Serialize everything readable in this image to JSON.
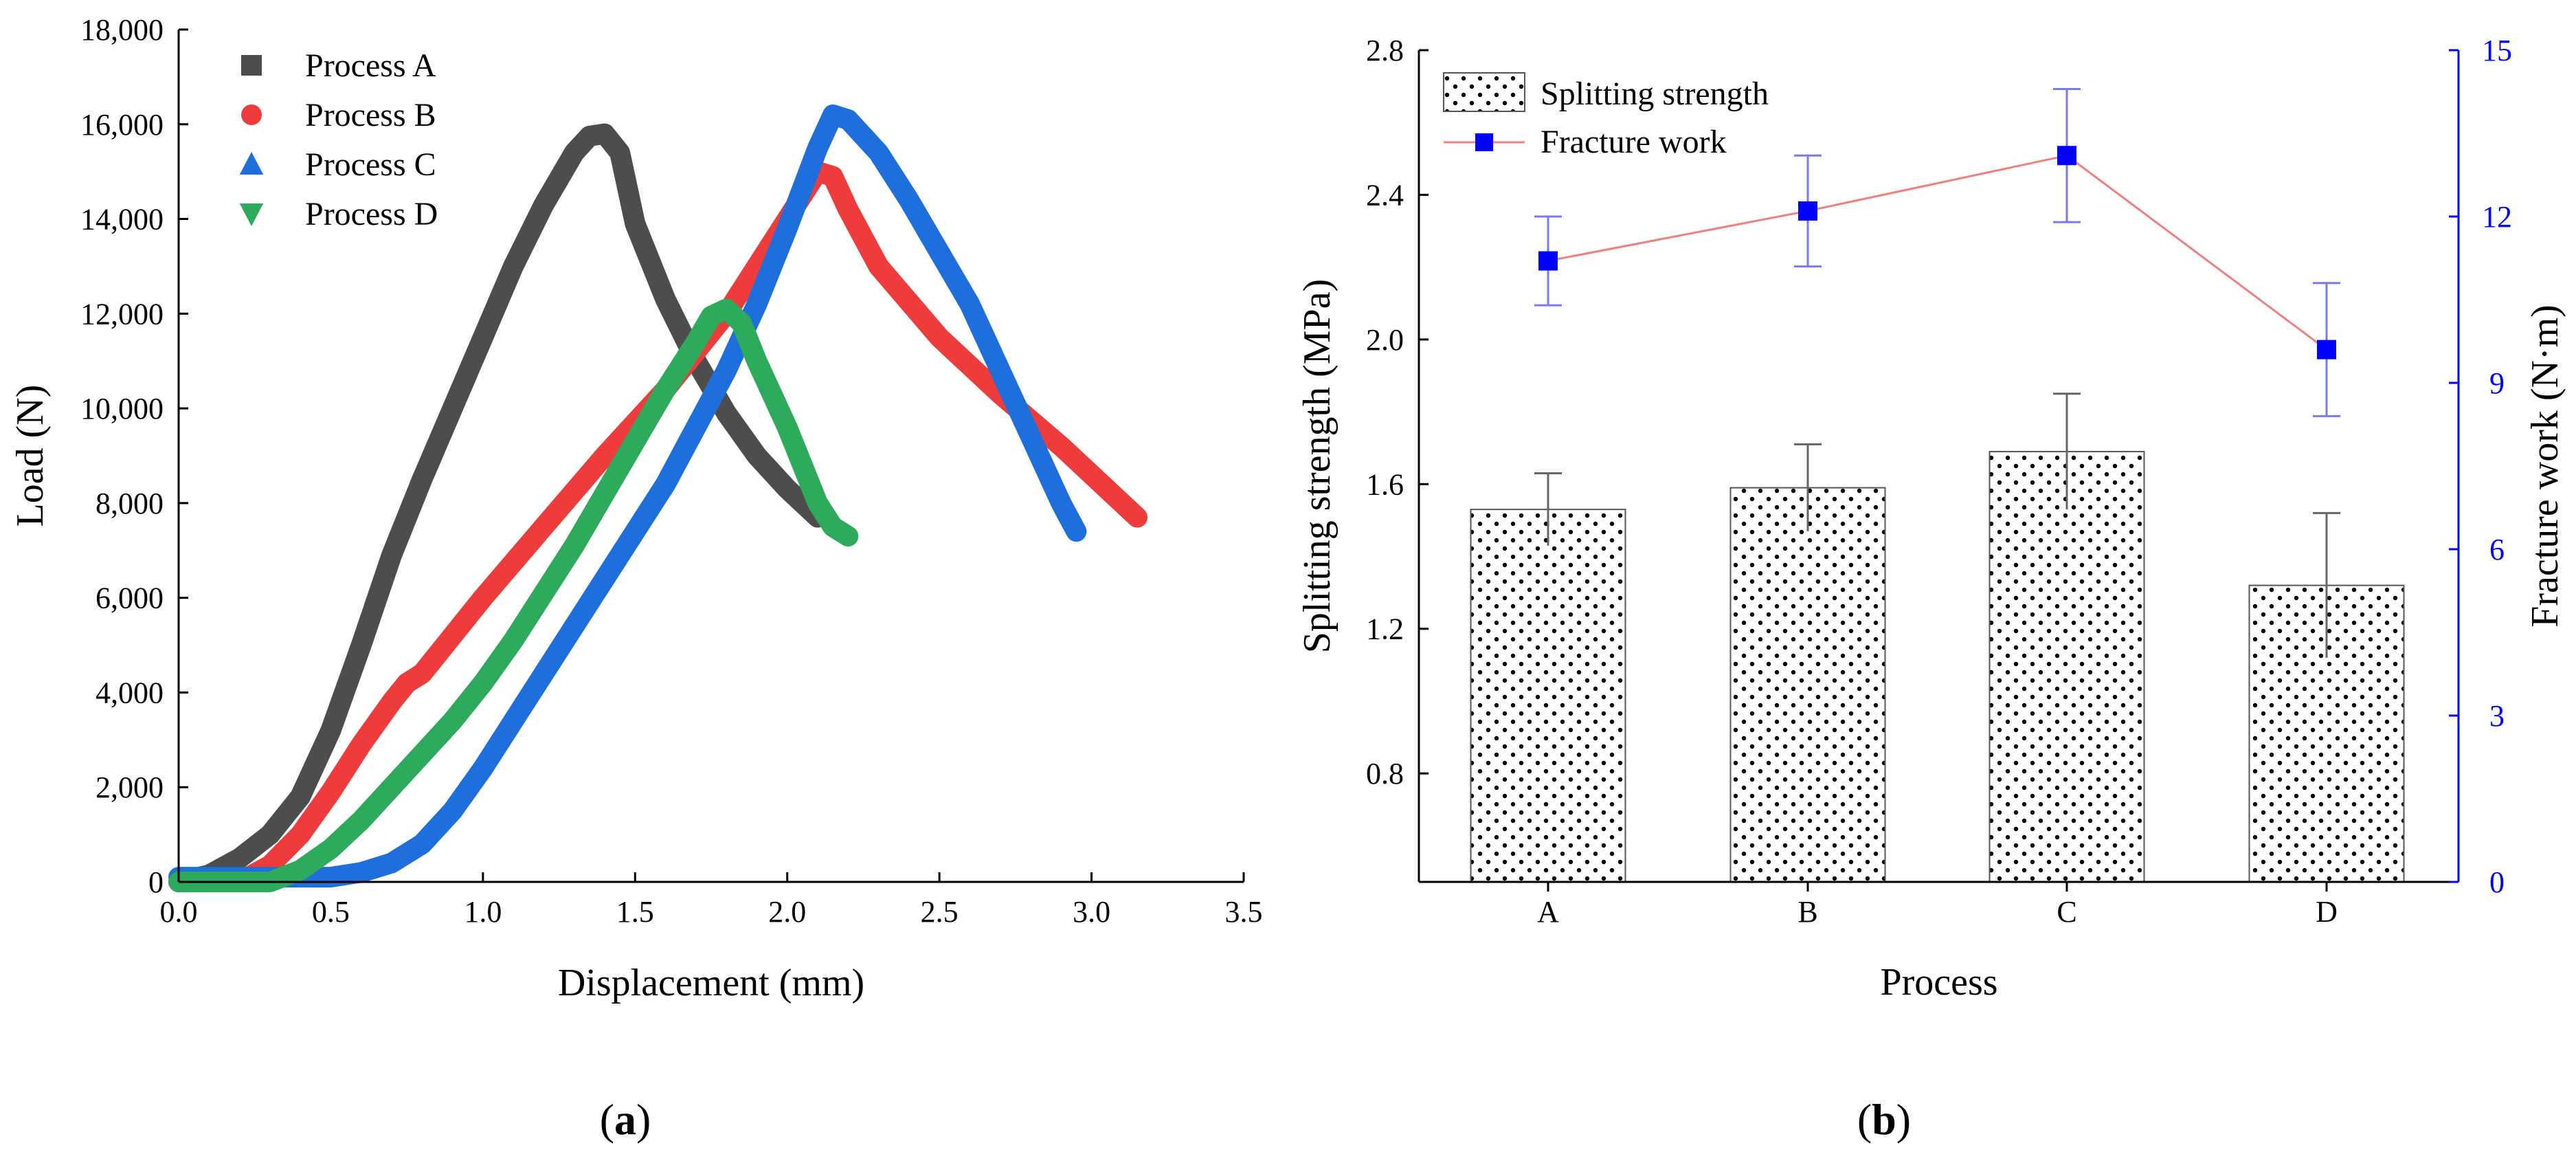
{
  "panels": {
    "a_label": "a",
    "b_label": "b"
  },
  "chart_data": [
    {
      "type": "line",
      "panel": "a",
      "title": "",
      "xlabel": "Displacement (mm)",
      "ylabel": "Load (N)",
      "xlim": [
        0,
        3.5
      ],
      "ylim": [
        0,
        18000
      ],
      "xticks": [
        "0.0",
        "0.5",
        "1.0",
        "1.5",
        "2.0",
        "2.5",
        "3.0",
        "3.5"
      ],
      "yticks": [
        "0",
        "2,000",
        "4,000",
        "6,000",
        "8,000",
        "10,000",
        "12,000",
        "14,000",
        "16,000",
        "18,000"
      ],
      "legend_position": "top-left",
      "series": [
        {
          "name": "Process A",
          "color": "#4d4d4d",
          "marker": "square",
          "x": [
            0.0,
            0.1,
            0.2,
            0.3,
            0.4,
            0.5,
            0.6,
            0.7,
            0.8,
            0.9,
            1.0,
            1.1,
            1.2,
            1.3,
            1.35,
            1.4,
            1.45,
            1.5,
            1.6,
            1.7,
            1.8,
            1.9,
            2.0,
            2.1
          ],
          "y": [
            0,
            150,
            500,
            1000,
            1800,
            3200,
            5000,
            6900,
            8500,
            10000,
            11500,
            13000,
            14300,
            15400,
            15750,
            15800,
            15400,
            13900,
            12300,
            11000,
            9900,
            9000,
            8300,
            7700
          ]
        },
        {
          "name": "Process B",
          "color": "#ee3b3b",
          "marker": "circle",
          "x": [
            0.0,
            0.2,
            0.3,
            0.4,
            0.5,
            0.6,
            0.7,
            0.75,
            0.8,
            0.9,
            1.0,
            1.2,
            1.4,
            1.6,
            1.8,
            2.0,
            2.1,
            2.15,
            2.2,
            2.3,
            2.5,
            2.7,
            2.9,
            3.1,
            3.15
          ],
          "y": [
            0,
            0,
            350,
            1000,
            1900,
            2900,
            3800,
            4200,
            4400,
            5200,
            6000,
            7500,
            9000,
            10400,
            12000,
            14000,
            15000,
            14900,
            14200,
            13000,
            11500,
            10300,
            9200,
            8000,
            7700
          ]
        },
        {
          "name": "Process C",
          "color": "#1e6fdc",
          "marker": "triangle-up",
          "x": [
            0.0,
            0.3,
            0.5,
            0.6,
            0.7,
            0.8,
            0.9,
            1.0,
            1.1,
            1.2,
            1.4,
            1.6,
            1.8,
            1.9,
            2.0,
            2.1,
            2.15,
            2.2,
            2.3,
            2.4,
            2.5,
            2.6,
            2.7,
            2.8,
            2.9,
            2.95
          ],
          "y": [
            100,
            100,
            100,
            200,
            400,
            800,
            1500,
            2400,
            3400,
            4400,
            6400,
            8400,
            10800,
            12200,
            13800,
            15500,
            16200,
            16100,
            15400,
            14400,
            13300,
            12200,
            10800,
            9400,
            8000,
            7400
          ]
        },
        {
          "name": "Process D",
          "color": "#2eaa5c",
          "marker": "triangle-down",
          "x": [
            0.0,
            0.3,
            0.4,
            0.5,
            0.6,
            0.7,
            0.8,
            0.9,
            1.0,
            1.1,
            1.2,
            1.3,
            1.4,
            1.5,
            1.6,
            1.7,
            1.75,
            1.8,
            1.85,
            1.9,
            2.0,
            2.1,
            2.15,
            2.2
          ],
          "y": [
            0,
            0,
            250,
            700,
            1300,
            2000,
            2700,
            3400,
            4200,
            5100,
            6100,
            7100,
            8200,
            9300,
            10400,
            11400,
            11950,
            12100,
            11800,
            11000,
            9600,
            8000,
            7500,
            7300
          ]
        }
      ]
    },
    {
      "type": "bar",
      "panel": "b",
      "title": "",
      "xlabel": "Process",
      "ylabel": "Splitting strength (MPa)",
      "ylabel_right": "Fracture work (N·m)",
      "categories": [
        "A",
        "B",
        "C",
        "D"
      ],
      "ylim": [
        0.5,
        2.8
      ],
      "yticks": [
        "0.8",
        "1.2",
        "1.6",
        "2.0",
        "2.4",
        "2.8"
      ],
      "ylim_right": [
        0,
        15
      ],
      "yticks_right": [
        "0",
        "3",
        "6",
        "9",
        "12",
        "15"
      ],
      "legend_position": "top-left",
      "series": [
        {
          "name": "Splitting strength",
          "kind": "bar",
          "pattern": "dots",
          "values": [
            1.53,
            1.59,
            1.69,
            1.32
          ],
          "errors": [
            0.1,
            0.12,
            0.16,
            0.2
          ]
        },
        {
          "name": "Fracture work",
          "kind": "line",
          "axis": "right",
          "color": "#0000ff",
          "line_color": "#f08080",
          "marker": "square",
          "values": [
            11.2,
            12.1,
            13.1,
            9.6
          ],
          "errors": [
            0.8,
            1.0,
            1.2,
            1.2
          ]
        }
      ]
    }
  ]
}
